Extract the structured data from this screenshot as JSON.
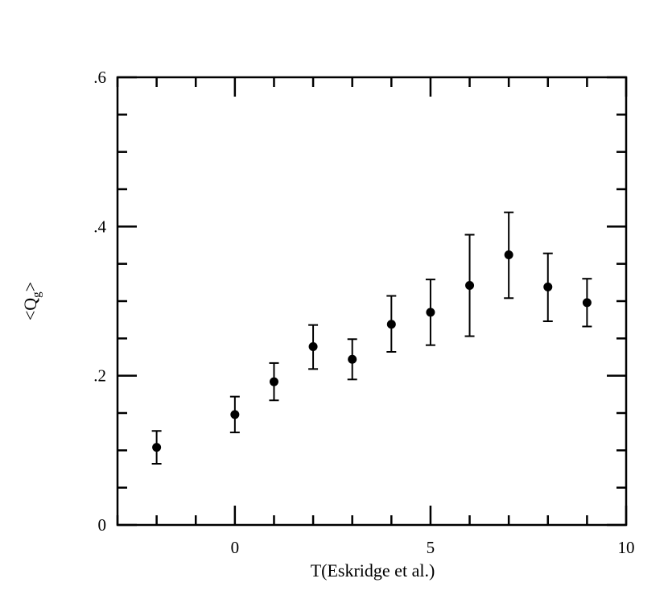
{
  "chart_data": {
    "type": "scatter",
    "title": "",
    "xlabel": "T(Eskridge et al.)",
    "ylabel": "<Q",
    "ylabel_subscript": "g",
    "ylabel_close": ">",
    "xlim": [
      -3,
      10
    ],
    "ylim": [
      0,
      0.6
    ],
    "x_major_ticks": [
      0,
      5,
      10
    ],
    "x_minor_step": 1,
    "y_major_ticks": [
      0,
      0.2,
      0.4,
      0.6
    ],
    "y_minor_step": 0.05,
    "x_tick_labels": [
      "0",
      "5",
      "10"
    ],
    "y_tick_labels": [
      "0",
      ".2",
      ".4",
      ".6"
    ],
    "grid": false,
    "legend": "none",
    "marker_color": "#000000",
    "series": [
      {
        "points": [
          {
            "x": -2,
            "y": 0.104,
            "err_low": 0.082,
            "err_high": 0.126
          },
          {
            "x": 0,
            "y": 0.148,
            "err_low": 0.124,
            "err_high": 0.172
          },
          {
            "x": 1,
            "y": 0.192,
            "err_low": 0.167,
            "err_high": 0.217
          },
          {
            "x": 2,
            "y": 0.239,
            "err_low": 0.209,
            "err_high": 0.268
          },
          {
            "x": 3,
            "y": 0.222,
            "err_low": 0.195,
            "err_high": 0.249
          },
          {
            "x": 4,
            "y": 0.269,
            "err_low": 0.232,
            "err_high": 0.307
          },
          {
            "x": 5,
            "y": 0.285,
            "err_low": 0.241,
            "err_high": 0.329
          },
          {
            "x": 6,
            "y": 0.321,
            "err_low": 0.253,
            "err_high": 0.389
          },
          {
            "x": 7,
            "y": 0.362,
            "err_low": 0.304,
            "err_high": 0.419
          },
          {
            "x": 8,
            "y": 0.319,
            "err_low": 0.273,
            "err_high": 0.364
          },
          {
            "x": 9,
            "y": 0.298,
            "err_low": 0.266,
            "err_high": 0.33
          }
        ]
      }
    ]
  }
}
